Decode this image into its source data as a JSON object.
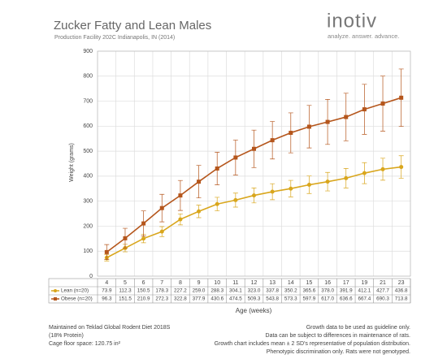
{
  "brand": {
    "logo": "inotiv",
    "tagline": "analyze. answer. advance."
  },
  "chart_data": {
    "type": "line",
    "title": "Zucker Fatty and Lean Males",
    "subtitle": "Production Facility 202C Indianapolis, IN (2014)",
    "y_label": "Weight (grams)",
    "x_label": "Age (weeks)",
    "categories": [
      "4",
      "5",
      "6",
      "7",
      "8",
      "9",
      "10",
      "11",
      "12",
      "13",
      "14",
      "15",
      "16",
      "17",
      "19",
      "21",
      "23"
    ],
    "series": [
      {
        "name": "Lean (n=20)",
        "color": "#d9a61c",
        "values": [
          73.9,
          112.3,
          150.5,
          178.3,
          227.2,
          259.0,
          288.3,
          304.1,
          323.0,
          337.8,
          350.2,
          365.6,
          378.0,
          391.9,
          412.1,
          427.7,
          436.8
        ],
        "value_labels": [
          "73.9",
          "112.3",
          "150.5",
          "178.3",
          "227.2",
          "259.0",
          "288.3",
          "304.1",
          "323.0",
          "337.8",
          "350.2",
          "365.6",
          "378.0",
          "391.9",
          "412.1",
          "427.7",
          "436.8"
        ],
        "errors": [
          13,
          15,
          17,
          20,
          22,
          25,
          27,
          28,
          30,
          32,
          33,
          35,
          37,
          39,
          42,
          44,
          45
        ]
      },
      {
        "name": "Obese (n=20)",
        "color": "#b5561c",
        "values": [
          96.3,
          151.5,
          210.9,
          272.3,
          322.8,
          377.9,
          430.6,
          474.5,
          509.3,
          543.8,
          573.3,
          597.9,
          617.0,
          636.6,
          667.4,
          690.3,
          713.8
        ],
        "value_labels": [
          "96.3",
          "151.5",
          "210.9",
          "272.3",
          "322.8",
          "377.9",
          "430.6",
          "474.5",
          "509.3",
          "543.8",
          "573.3",
          "597.9",
          "617.0",
          "636.6",
          "667.4",
          "690.3",
          "713.8"
        ],
        "errors": [
          30,
          40,
          50,
          55,
          60,
          65,
          65,
          70,
          75,
          75,
          80,
          85,
          90,
          95,
          100,
          110,
          115
        ]
      }
    ],
    "ylim": [
      0,
      900
    ],
    "yticks": [
      0,
      100,
      200,
      300,
      400,
      500,
      600,
      700,
      800,
      900
    ],
    "grid": true,
    "notes_left": [
      "Maintained on Teklad Global Rodent Diet 2018S",
      "(18% Protein)",
      "Cage floor space: 120.75 in²"
    ],
    "notes_right": [
      "Growth data to be used as guideline only.",
      "Data can be subject to differences in maintenance of rats.",
      "Growth chart includes mean ± 2 SD's representative of population distribution.",
      "Phenotypic discrimination only. Rats were not genotyped."
    ]
  }
}
